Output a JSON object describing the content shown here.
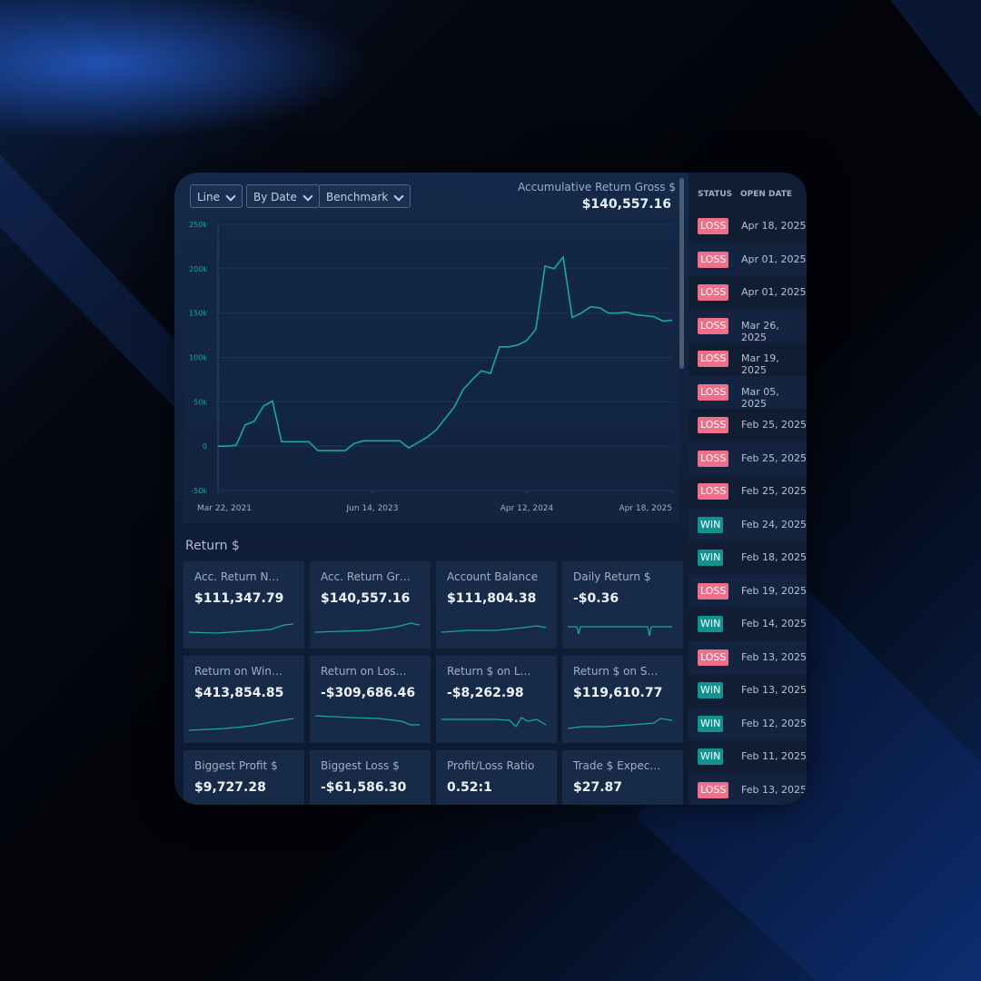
{
  "toolbar": {
    "buttons": [
      "Line",
      "By Date",
      "Benchmark"
    ]
  },
  "chart_header": {
    "title": "Accumulative Return Gross $",
    "value": "$140,557.16"
  },
  "chart_data": {
    "type": "line",
    "color": "#1aa6a6",
    "values": [
      0,
      0,
      1000,
      24000,
      28000,
      45000,
      51000,
      5000,
      5000,
      5000,
      5000,
      -5000,
      -5000,
      -5000,
      -5000,
      3000,
      6000,
      6000,
      6000,
      6000,
      6000,
      -2000,
      4000,
      10000,
      18000,
      31000,
      44000,
      64000,
      75000,
      85000,
      82000,
      112000,
      112000,
      114000,
      119000,
      132000,
      203000,
      200000,
      213000,
      145000,
      150000,
      157000,
      156000,
      150000,
      150000,
      151000,
      148000,
      147000,
      146000,
      141000,
      142000
    ],
    "xlim": [
      0,
      50
    ],
    "xticks": [
      {
        "value": 0,
        "label": "Mar 22, 2021"
      },
      {
        "value": 17,
        "label": "Jun 14, 2023"
      },
      {
        "value": 34,
        "label": "Apr 12, 2024"
      },
      {
        "value": 50,
        "label": "Apr 18, 2025"
      }
    ],
    "ylim": [
      -50000,
      250000
    ],
    "yticks": [
      {
        "value": 250000,
        "label": "250k"
      },
      {
        "value": 200000,
        "label": "200k"
      },
      {
        "value": 150000,
        "label": "150k"
      },
      {
        "value": 100000,
        "label": "100k"
      },
      {
        "value": 50000,
        "label": "50k"
      },
      0,
      {
        "value": -50000,
        "label": "-50k"
      }
    ]
  },
  "section_title": "Return $",
  "cards": [
    {
      "label": "Acc. Return N…",
      "value": "$111,347.79"
    },
    {
      "label": "Acc. Return Gr…",
      "value": "$140,557.16"
    },
    {
      "label": "Account Balance",
      "value": "$111,804.38"
    },
    {
      "label": "Daily Return $",
      "value": "-$0.36"
    },
    {
      "label": "Return on Win…",
      "value": "$413,854.85"
    },
    {
      "label": "Return on Los…",
      "value": "-$309,686.46"
    },
    {
      "label": "Return $ on L…",
      "value": "-$8,262.98"
    },
    {
      "label": "Return $ on S…",
      "value": "$119,610.77"
    },
    {
      "label": "Biggest Profit $",
      "value": "$9,727.28"
    },
    {
      "label": "Biggest Loss $",
      "value": "-$61,586.30"
    },
    {
      "label": "Profit/Loss Ratio",
      "value": "0.52:1"
    },
    {
      "label": "Trade $ Expec…",
      "value": "$27.87"
    }
  ],
  "table": {
    "headers": [
      "STATUS",
      "OPEN DATE"
    ],
    "rows": [
      [
        "LOSS",
        "Apr 18, 2025"
      ],
      [
        "LOSS",
        "Apr 01, 2025"
      ],
      [
        "LOSS",
        "Apr 01, 2025"
      ],
      [
        "LOSS",
        "Mar 26, 2025"
      ],
      [
        "LOSS",
        "Mar 19, 2025"
      ],
      [
        "LOSS",
        "Mar 05, 2025"
      ],
      [
        "LOSS",
        "Feb 25, 2025"
      ],
      [
        "LOSS",
        "Feb 25, 2025"
      ],
      [
        "LOSS",
        "Feb 25, 2025"
      ],
      [
        "WIN",
        "Feb 24, 2025"
      ],
      [
        "WIN",
        "Feb 18, 2025"
      ],
      [
        "LOSS",
        "Feb 19, 2025"
      ],
      [
        "WIN",
        "Feb 14, 2025"
      ],
      [
        "LOSS",
        "Feb 13, 2025"
      ],
      [
        "WIN",
        "Feb 13, 2025"
      ],
      [
        "WIN",
        "Feb 12, 2025"
      ],
      [
        "WIN",
        "Feb 11, 2025"
      ],
      [
        "LOSS",
        "Feb 13, 2025"
      ]
    ]
  }
}
